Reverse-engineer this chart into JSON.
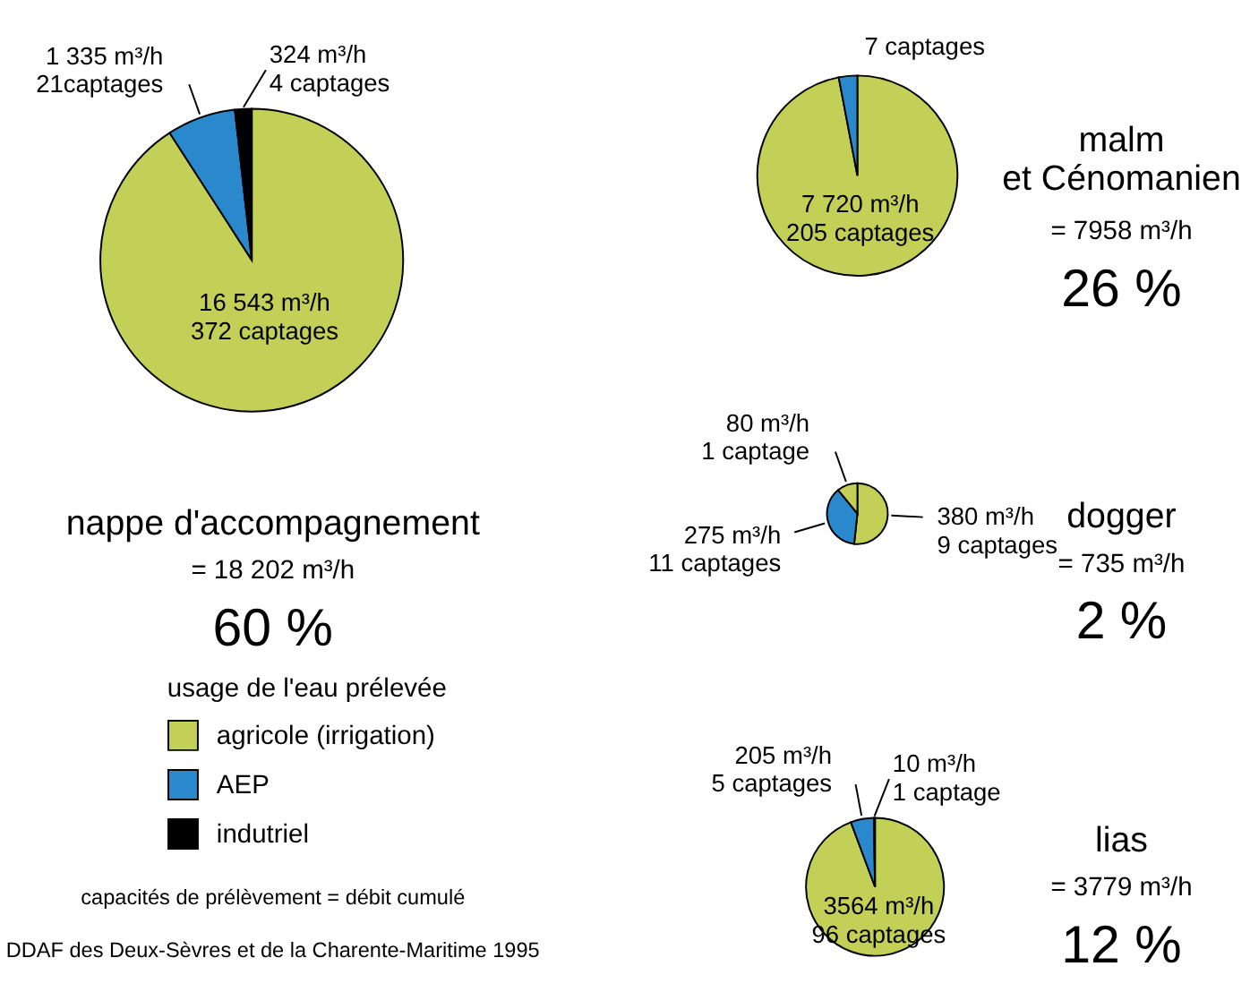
{
  "chart_data": [
    {
      "type": "pie",
      "title": "nappe d'accompagnement",
      "subtitle": "= 18 202 m³/h",
      "legend_title": "usage de l'eau prélevée",
      "legend": "bottom",
      "categories": [
        "agricole (irrigation)",
        "AEP",
        "indutriel"
      ],
      "values": [
        16543,
        1335,
        324
      ],
      "colors": [
        "#c2d057",
        "#2a88cc",
        "#000000"
      ],
      "value_labels": [
        "16 543 m³/h\n372 captages",
        "1 335 m³/h\n21captages",
        "324 m³/h\n4 captages"
      ],
      "annotations": [
        "60 %",
        "capacités de prélèvement = débit cumulé",
        "DDAF des Deux-Sèvres et de la Charente-Maritime 1995"
      ]
    },
    {
      "type": "pie",
      "title": "malm\net Cénomanien",
      "subtitle": "= 7958 m³/h",
      "categories": [
        null,
        null
      ],
      "values": [
        7720,
        238
      ],
      "colors": [
        "#c2d057",
        "#2a88cc"
      ],
      "value_labels": [
        "7 720 m³/h\n205 captages",
        null
      ],
      "annotations": [
        "26 %",
        "7 captages"
      ]
    },
    {
      "type": "pie",
      "title": "dogger",
      "subtitle": "= 735 m³/h",
      "categories": [
        null,
        null,
        null
      ],
      "values": [
        380,
        275,
        80
      ],
      "colors": [
        "#c2d057",
        "#2a88cc",
        "#000000"
      ],
      "value_labels": [
        "380 m³/h\n9 captages",
        "275 m³/h\n11 captages",
        "80 m³/h\n1 captage"
      ],
      "annotations": [
        "2 %"
      ]
    },
    {
      "type": "pie",
      "title": "lias",
      "subtitle": "= 3779 m³/h",
      "categories": [
        null,
        null,
        null
      ],
      "values": [
        3564,
        205,
        10
      ],
      "colors": [
        "#c2d057",
        "#2a88cc",
        "#000000"
      ],
      "value_labels": [
        "3564 m³/h\n96 captages",
        "205 m³/h\n5 captages",
        "10 m³/h\n1 captage"
      ],
      "annotations": [
        "12 %"
      ]
    }
  ]
}
